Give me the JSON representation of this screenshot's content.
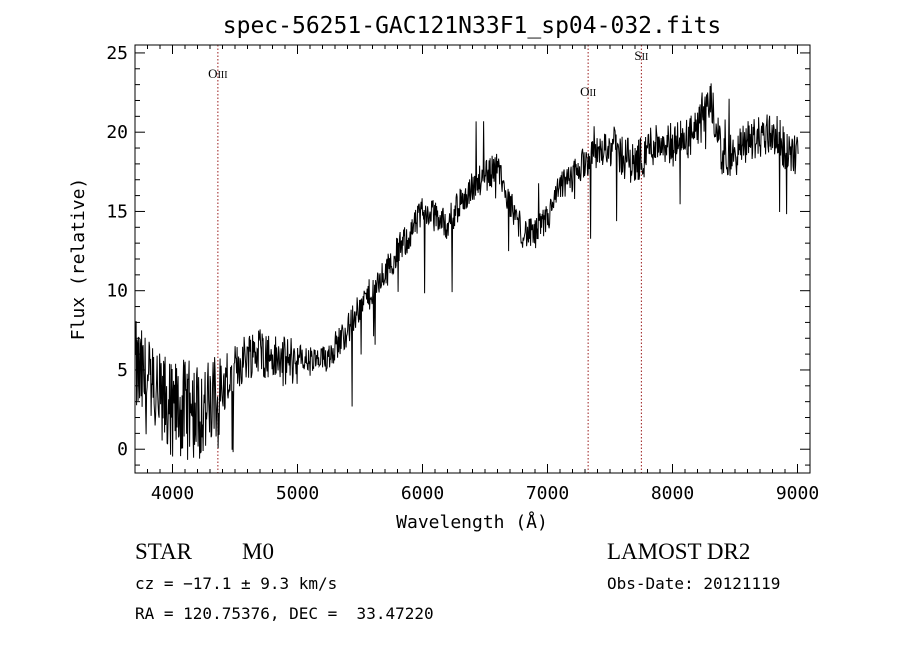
{
  "chart_data": {
    "type": "line",
    "title": "spec-56251-GAC121N33F1_sp04-032.fits",
    "xlabel": "Wavelength (Å)",
    "ylabel": "Flux (relative)",
    "xlim": [
      3700,
      9100
    ],
    "ylim": [
      -1.5,
      25.5
    ],
    "xticks": [
      4000,
      5000,
      6000,
      7000,
      8000,
      9000
    ],
    "yticks": [
      0,
      5,
      10,
      15,
      20,
      25
    ],
    "grid": false,
    "line_color": "#000000",
    "spectrum": {
      "x": [
        3700,
        3800,
        3900,
        4000,
        4100,
        4200,
        4300,
        4400,
        4500,
        4600,
        4700,
        4800,
        4900,
        5000,
        5100,
        5200,
        5300,
        5400,
        5500,
        5600,
        5700,
        5800,
        5900,
        6000,
        6100,
        6200,
        6300,
        6400,
        6500,
        6600,
        6700,
        6800,
        6900,
        7000,
        7100,
        7200,
        7300,
        7400,
        7500,
        7600,
        7700,
        7800,
        7900,
        8000,
        8100,
        8200,
        8300,
        8400,
        8500,
        8600,
        8700,
        8800,
        8900,
        9000
      ],
      "y": [
        5,
        4,
        3,
        2.5,
        2.5,
        2.5,
        2.5,
        3.5,
        5,
        6,
        6.3,
        5.7,
        5.5,
        5.7,
        5.5,
        5.5,
        6.5,
        7.5,
        9,
        10,
        11,
        12.5,
        13.5,
        15,
        14.7,
        14.2,
        15.5,
        16.5,
        17.2,
        17.8,
        15.5,
        13.7,
        13.5,
        14.5,
        16.5,
        17.2,
        18.2,
        18.7,
        19.2,
        18.5,
        18,
        19,
        19.5,
        19.3,
        19.5,
        20,
        22,
        18.5,
        18.5,
        19.5,
        19.7,
        20,
        19,
        18.5
      ]
    },
    "lines": [
      {
        "label_main": "O",
        "label_ion": "III",
        "x": 4363
      },
      {
        "label_main": "O",
        "label_ion": "II",
        "x": 7325
      },
      {
        "label_main": "S",
        "label_ion": "II",
        "x": 7751
      }
    ],
    "line_marker_color": "#9b1c1c"
  },
  "info": {
    "class_label": "STAR",
    "subclass_label": "M0",
    "survey": "LAMOST DR2",
    "cz_text": "cz = −17.1 ± 9.3 km/s",
    "obs_date": "Obs-Date: 20121119",
    "coords": "RA = 120.75376, DEC =  33.47220"
  }
}
